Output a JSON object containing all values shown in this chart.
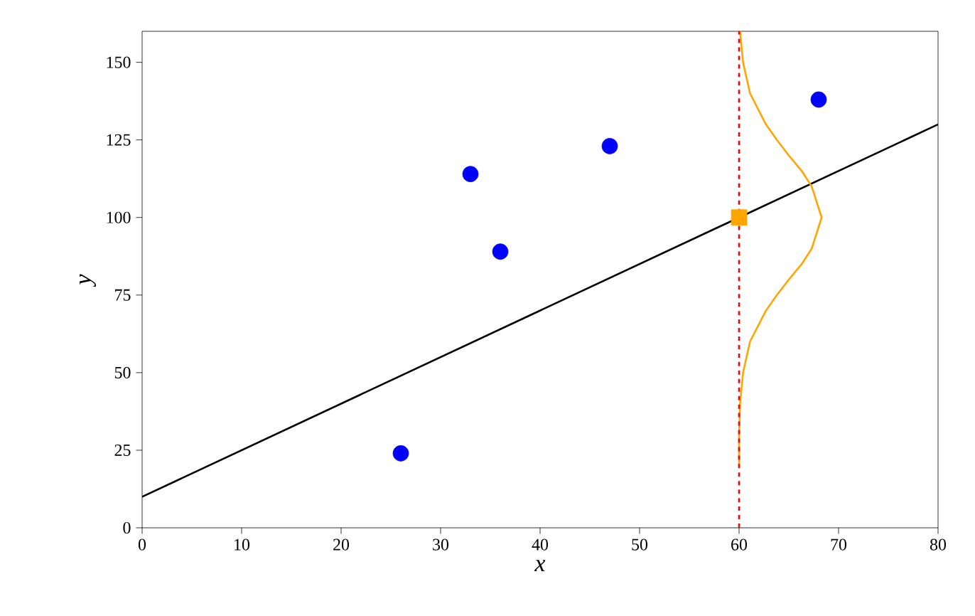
{
  "chart_data": {
    "type": "scatter",
    "xlabel": "x",
    "ylabel": "y",
    "xlim": [
      0,
      80
    ],
    "xticks": [
      0,
      10,
      20,
      30,
      40,
      50,
      60,
      70,
      80
    ],
    "ylim": [
      0,
      160
    ],
    "yticks": [
      0,
      25,
      50,
      75,
      100,
      125,
      150
    ],
    "series": [
      {
        "type": "line",
        "color": "#000000",
        "marker": "none",
        "line_style": "solid",
        "x": [
          0,
          80
        ],
        "values": [
          10,
          130
        ]
      },
      {
        "type": "line",
        "color": "#ffa500",
        "marker": "none",
        "line_style": "solid",
        "x": [
          60.0,
          60.0,
          60.1,
          60.4,
          61.1,
          62.7,
          63.8,
          65.0,
          66.3,
          67.3,
          68.3,
          67.3,
          66.3,
          65.0,
          63.8,
          62.7,
          61.1,
          60.4,
          60.1
        ],
        "values": [
          20,
          30,
          40,
          50,
          60,
          70,
          75,
          80,
          85,
          90,
          100,
          110,
          115,
          120,
          125,
          130,
          140,
          150,
          160
        ]
      },
      {
        "color": "#0000ff",
        "marker": "circle",
        "x": [
          26,
          33,
          36,
          47,
          68
        ],
        "values": [
          24,
          114,
          89,
          123,
          138
        ]
      },
      {
        "color": "#ffa500",
        "marker": "square",
        "x": [
          60
        ],
        "values": [
          100
        ]
      }
    ],
    "ref_lines": [
      {
        "axis": "x",
        "value": 60,
        "color": "#ff0000",
        "line_style": "dashed"
      }
    ]
  }
}
